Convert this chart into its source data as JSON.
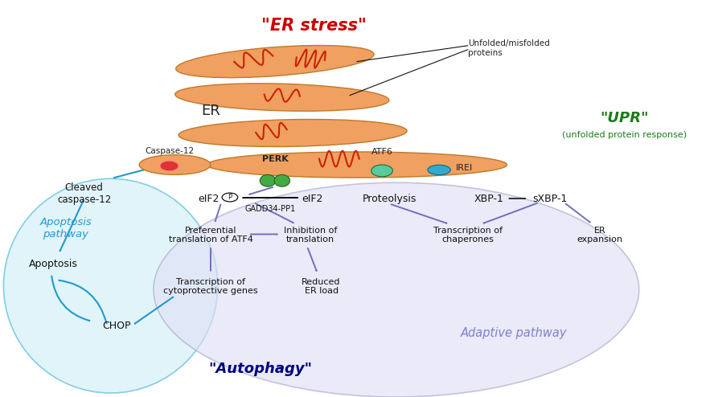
{
  "background": "#ffffff",
  "er_stress_text": "\"ER stress\"",
  "er_stress_color": "#cc0000",
  "upr_text": "\"UPR\"",
  "upr_color": "#1a7a1a",
  "upr_sub": "(unfolded protein response)",
  "autophagy_text": "\"Autophagy\"",
  "autophagy_color": "#000080",
  "adaptive_text": "Adaptive pathway",
  "adaptive_color": "#8080cc",
  "apoptosis_color": "#2299cc",
  "er_color": "#f0a060",
  "er_edge": "#c07828",
  "purple": "#7070bb",
  "blue": "#2299cc",
  "black": "#111111",
  "perk_color": "#44aa44",
  "atf6_color": "#44aa88",
  "irei_color": "#33aacc",
  "casp_color": "#dd3333"
}
